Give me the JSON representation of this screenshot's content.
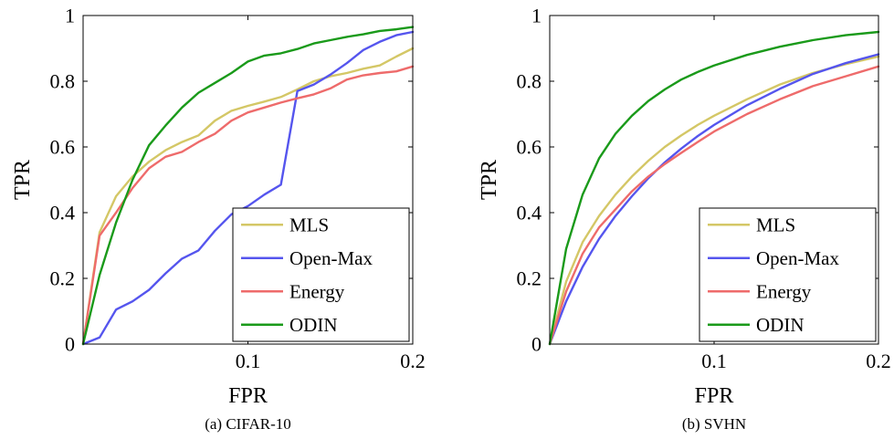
{
  "chart_data": [
    {
      "type": "line",
      "caption": "(a) CIFAR-10",
      "xlabel": "FPR",
      "ylabel": "TPR",
      "xlim": [
        0,
        0.2
      ],
      "ylim": [
        0,
        1
      ],
      "xticks": [
        0.1,
        0.2
      ],
      "xtick_labels": [
        "0.1",
        "0.2"
      ],
      "yticks": [
        0,
        0.2,
        0.4,
        0.6,
        0.8,
        1
      ],
      "ytick_labels": [
        "0",
        "0.2",
        "0.4",
        "0.6",
        "0.8",
        "1"
      ],
      "grid": false,
      "legend_position": "bottom-right",
      "series": [
        {
          "name": "MLS",
          "color": "#d4c766",
          "x": [
            0,
            0.01,
            0.02,
            0.03,
            0.04,
            0.05,
            0.06,
            0.07,
            0.08,
            0.09,
            0.1,
            0.11,
            0.12,
            0.13,
            0.14,
            0.15,
            0.16,
            0.17,
            0.18,
            0.19,
            0.2
          ],
          "y": [
            0,
            0.34,
            0.45,
            0.51,
            0.555,
            0.59,
            0.615,
            0.635,
            0.68,
            0.71,
            0.725,
            0.738,
            0.752,
            0.775,
            0.8,
            0.815,
            0.825,
            0.838,
            0.848,
            0.875,
            0.9
          ]
        },
        {
          "name": "Open-Max",
          "color": "#5555ee",
          "x": [
            0,
            0.01,
            0.02,
            0.03,
            0.04,
            0.05,
            0.06,
            0.07,
            0.08,
            0.09,
            0.1,
            0.11,
            0.12,
            0.13,
            0.14,
            0.15,
            0.16,
            0.17,
            0.18,
            0.19,
            0.2
          ],
          "y": [
            0,
            0.02,
            0.105,
            0.13,
            0.165,
            0.215,
            0.26,
            0.285,
            0.345,
            0.395,
            0.42,
            0.455,
            0.485,
            0.77,
            0.79,
            0.82,
            0.855,
            0.895,
            0.92,
            0.94,
            0.95
          ]
        },
        {
          "name": "Energy",
          "color": "#ee6b6b",
          "x": [
            0,
            0.01,
            0.02,
            0.03,
            0.04,
            0.05,
            0.06,
            0.07,
            0.08,
            0.09,
            0.1,
            0.11,
            0.12,
            0.13,
            0.14,
            0.15,
            0.16,
            0.17,
            0.18,
            0.19,
            0.2
          ],
          "y": [
            0,
            0.33,
            0.4,
            0.475,
            0.535,
            0.57,
            0.585,
            0.615,
            0.64,
            0.68,
            0.705,
            0.72,
            0.735,
            0.748,
            0.76,
            0.778,
            0.805,
            0.818,
            0.825,
            0.83,
            0.845
          ]
        },
        {
          "name": "ODIN",
          "color": "#1a9a1a",
          "x": [
            0,
            0.01,
            0.02,
            0.03,
            0.04,
            0.05,
            0.06,
            0.07,
            0.08,
            0.09,
            0.1,
            0.11,
            0.12,
            0.13,
            0.14,
            0.15,
            0.16,
            0.17,
            0.18,
            0.19,
            0.2
          ],
          "y": [
            0,
            0.21,
            0.37,
            0.5,
            0.605,
            0.665,
            0.72,
            0.765,
            0.795,
            0.825,
            0.86,
            0.878,
            0.885,
            0.898,
            0.915,
            0.925,
            0.935,
            0.943,
            0.953,
            0.958,
            0.965
          ]
        }
      ]
    },
    {
      "type": "line",
      "caption": "(b) SVHN",
      "xlabel": "FPR",
      "ylabel": "TPR",
      "xlim": [
        0,
        0.2
      ],
      "ylim": [
        0,
        1
      ],
      "xticks": [
        0.1,
        0.2
      ],
      "xtick_labels": [
        "0.1",
        "0.2"
      ],
      "yticks": [
        0,
        0.2,
        0.4,
        0.6,
        0.8,
        1
      ],
      "ytick_labels": [
        "0",
        "0.2",
        "0.4",
        "0.6",
        "0.8",
        "1"
      ],
      "grid": false,
      "legend_position": "bottom-right",
      "series": [
        {
          "name": "MLS",
          "color": "#d4c766",
          "x": [
            0,
            0.01,
            0.02,
            0.03,
            0.04,
            0.05,
            0.06,
            0.07,
            0.08,
            0.09,
            0.1,
            0.12,
            0.14,
            0.16,
            0.18,
            0.2
          ],
          "y": [
            0,
            0.19,
            0.31,
            0.39,
            0.455,
            0.51,
            0.558,
            0.6,
            0.635,
            0.667,
            0.695,
            0.745,
            0.79,
            0.825,
            0.852,
            0.875
          ]
        },
        {
          "name": "Open-Max",
          "color": "#5555ee",
          "x": [
            0,
            0.01,
            0.02,
            0.03,
            0.04,
            0.05,
            0.06,
            0.07,
            0.08,
            0.09,
            0.1,
            0.12,
            0.14,
            0.16,
            0.18,
            0.2
          ],
          "y": [
            0,
            0.13,
            0.235,
            0.32,
            0.39,
            0.45,
            0.505,
            0.553,
            0.595,
            0.633,
            0.667,
            0.727,
            0.777,
            0.822,
            0.855,
            0.882
          ]
        },
        {
          "name": "Energy",
          "color": "#ee6b6b",
          "x": [
            0,
            0.01,
            0.02,
            0.03,
            0.04,
            0.05,
            0.06,
            0.07,
            0.08,
            0.09,
            0.1,
            0.12,
            0.14,
            0.16,
            0.18,
            0.2
          ],
          "y": [
            0,
            0.16,
            0.275,
            0.355,
            0.41,
            0.465,
            0.51,
            0.548,
            0.582,
            0.615,
            0.647,
            0.7,
            0.745,
            0.785,
            0.815,
            0.845
          ]
        },
        {
          "name": "ODIN",
          "color": "#1a9a1a",
          "x": [
            0,
            0.01,
            0.02,
            0.03,
            0.04,
            0.05,
            0.06,
            0.07,
            0.08,
            0.09,
            0.1,
            0.12,
            0.14,
            0.16,
            0.18,
            0.2
          ],
          "y": [
            0,
            0.29,
            0.455,
            0.565,
            0.64,
            0.695,
            0.74,
            0.775,
            0.805,
            0.828,
            0.848,
            0.88,
            0.905,
            0.925,
            0.94,
            0.95
          ]
        }
      ]
    }
  ]
}
